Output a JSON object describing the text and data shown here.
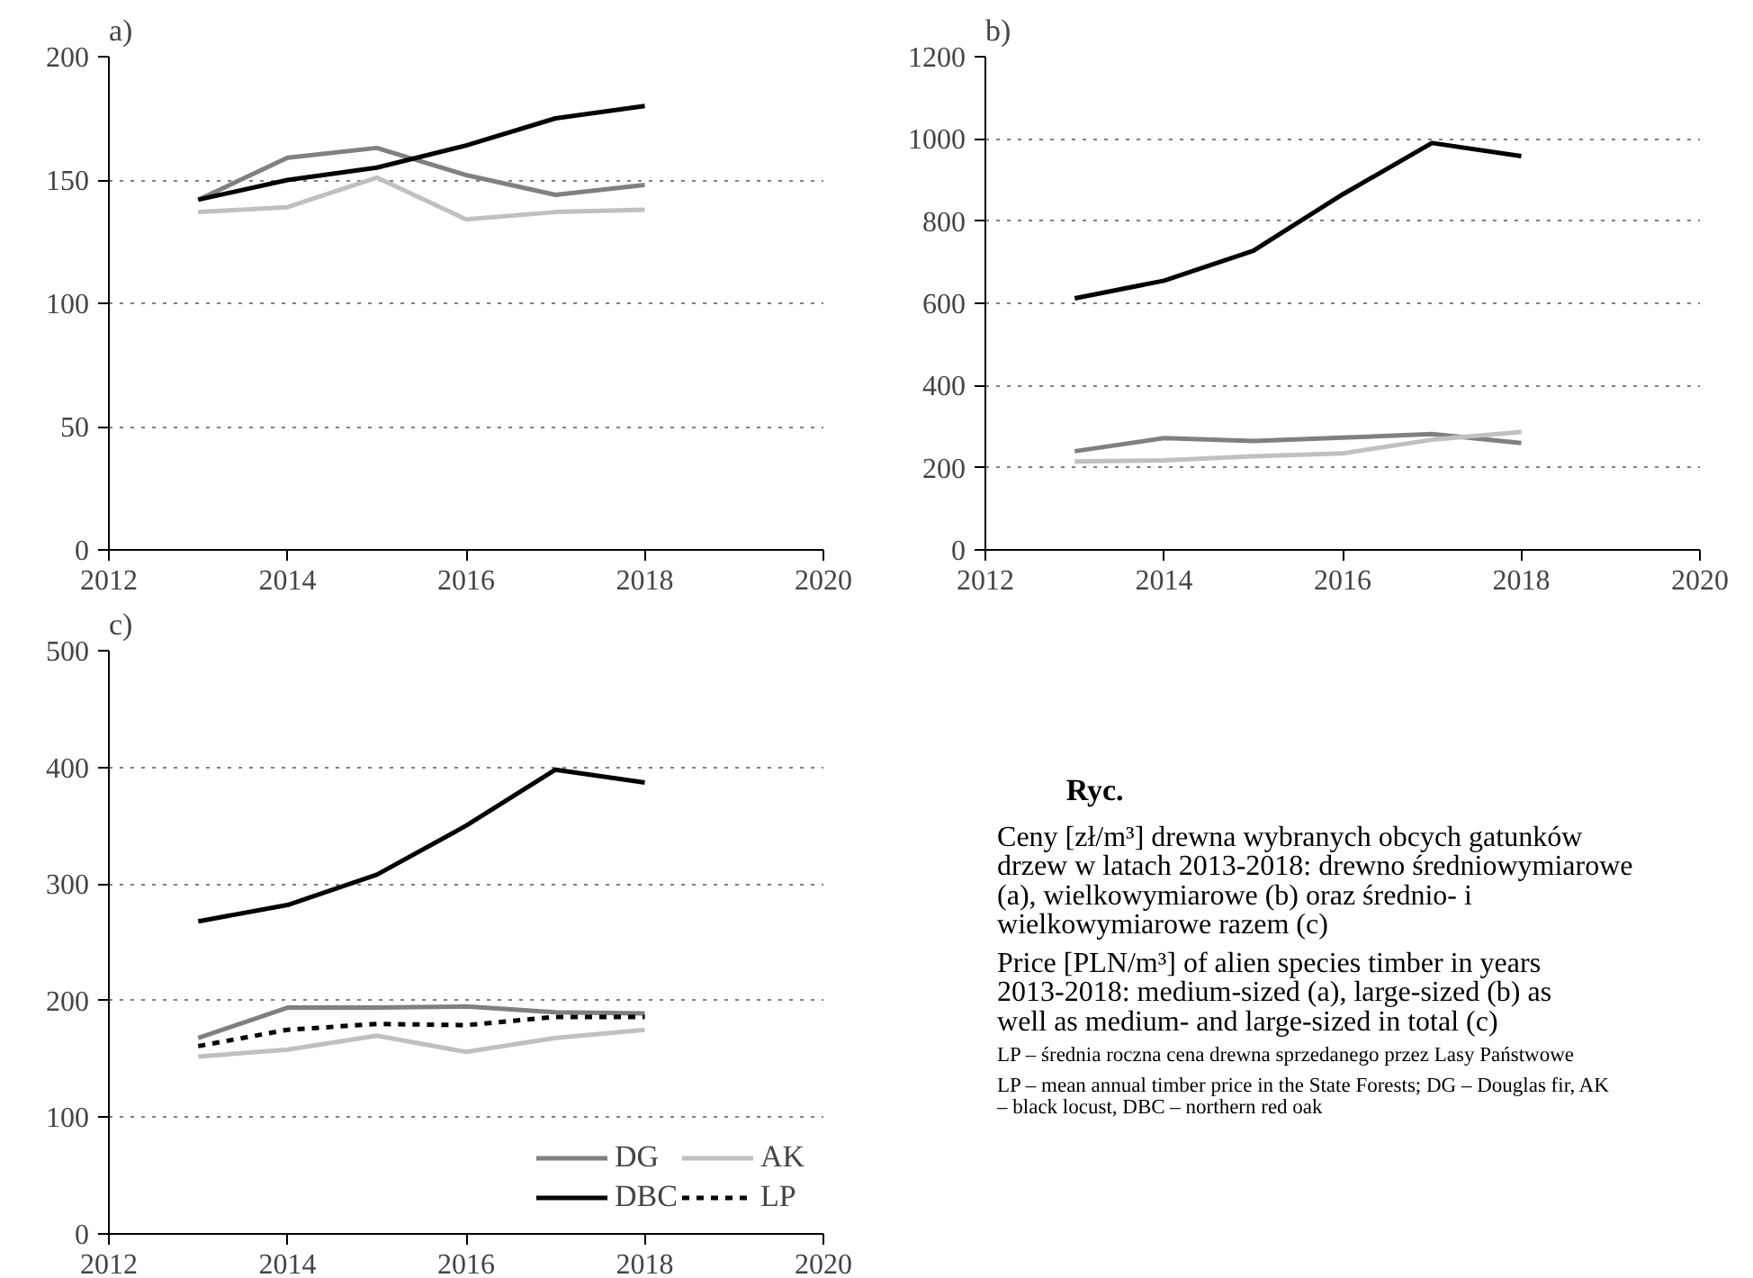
{
  "chart_data": [
    {
      "type": "line",
      "title": "a)",
      "x": [
        2013,
        2014,
        2015,
        2016,
        2017,
        2018
      ],
      "xlim": [
        2012,
        2020
      ],
      "xticks": [
        2012,
        2014,
        2016,
        2018,
        2020
      ],
      "ylim": [
        0,
        200
      ],
      "yticks": [
        0,
        50,
        100,
        150,
        200
      ],
      "grid": "y",
      "series": [
        {
          "color": "#808080",
          "values": [
            142,
            159,
            163,
            152,
            144,
            148
          ]
        },
        {
          "color": "#c0c0c0",
          "values": [
            137,
            139,
            151,
            134,
            137,
            138
          ]
        },
        {
          "color": "#000000",
          "values": [
            142,
            150,
            155,
            164,
            175,
            180
          ]
        }
      ]
    },
    {
      "type": "line",
      "title": "b)",
      "x": [
        2013,
        2014,
        2015,
        2016,
        2017,
        2018
      ],
      "xlim": [
        2012,
        2020
      ],
      "xticks": [
        2012,
        2014,
        2016,
        2018,
        2020
      ],
      "ylim": [
        0,
        1200
      ],
      "yticks": [
        0,
        200,
        400,
        600,
        800,
        1000,
        1200
      ],
      "grid": "y",
      "series": [
        {
          "color": "#808080",
          "values": [
            240,
            272,
            265,
            273,
            282,
            260
          ]
        },
        {
          "color": "#c0c0c0",
          "values": [
            215,
            218,
            228,
            235,
            268,
            287
          ]
        },
        {
          "color": "#000000",
          "values": [
            612,
            655,
            728,
            865,
            990,
            958
          ]
        }
      ]
    },
    {
      "type": "line",
      "title": "c)",
      "x": [
        2013,
        2014,
        2015,
        2016,
        2017,
        2018
      ],
      "xlim": [
        2012,
        2020
      ],
      "xticks": [
        2012,
        2014,
        2016,
        2018,
        2020
      ],
      "ylim": [
        0,
        500
      ],
      "yticks": [
        0,
        100,
        200,
        300,
        400,
        500
      ],
      "grid": "y",
      "legend": "bottom right",
      "series": [
        {
          "name": "DG",
          "color": "#808080",
          "values": [
            168,
            194,
            194,
            195,
            190,
            189
          ]
        },
        {
          "name": "AK",
          "color": "#c0c0c0",
          "values": [
            152,
            158,
            170,
            156,
            168,
            175
          ]
        },
        {
          "name": "DBC",
          "color": "#000000",
          "values": [
            268,
            282,
            308,
            350,
            398,
            387
          ]
        },
        {
          "name": "LP",
          "color": "#000000",
          "line_style": "dashed",
          "values": [
            161,
            175,
            180,
            179,
            186,
            186
          ]
        }
      ]
    },
    {
      "type": "other",
      "title": "Ryc.",
      "annotations": [
        "Ceny [zł/m³] drewna wybranych obcych gatunków drzew w latach 2013-2018: drewno średniowymiarowe (a), wielkowymiarowe (b) oraz średnio- i wielkowymiarowe razem (c)",
        "Price [PLN/m³] of alien species timber in years 2013-2018: medium-sized (a), large-sized (b) as well as medium- and large-sized in total (c)",
        "LP – średnia roczna cena drewna sprzedanego przez Lasy Państwowe",
        "LP – mean annual timber price in the State Forests; DG – Douglas fir, AK – black locust, DBC – northern red oak"
      ]
    }
  ]
}
